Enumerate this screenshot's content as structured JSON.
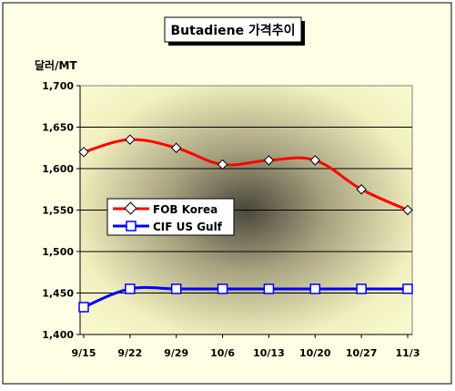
{
  "chart_data": {
    "type": "line",
    "title": "Butadiene 가격추이",
    "ylabel": "달러/MT",
    "xlabel": "",
    "categories": [
      "9/15",
      "9/22",
      "9/29",
      "10/6",
      "10/13",
      "10/20",
      "10/27",
      "11/3"
    ],
    "ylim": [
      1400,
      1700
    ],
    "yticks": [
      1400,
      1450,
      1500,
      1550,
      1600,
      1650,
      1700
    ],
    "ytick_labels": [
      "1,400",
      "1,450",
      "1,500",
      "1,550",
      "1,600",
      "1,650",
      "1,700"
    ],
    "grid": true,
    "legend_position": "left-center",
    "series": [
      {
        "name": "FOB Korea",
        "values": [
          1620,
          1635,
          1625,
          1605,
          1610,
          1610,
          1575,
          1550
        ],
        "color": "#ff0000",
        "marker": "diamond"
      },
      {
        "name": "CIF US Gulf",
        "values": [
          1433,
          1455,
          1455,
          1455,
          1455,
          1455,
          1455,
          1455
        ],
        "color": "#0000ff",
        "marker": "square"
      }
    ]
  }
}
